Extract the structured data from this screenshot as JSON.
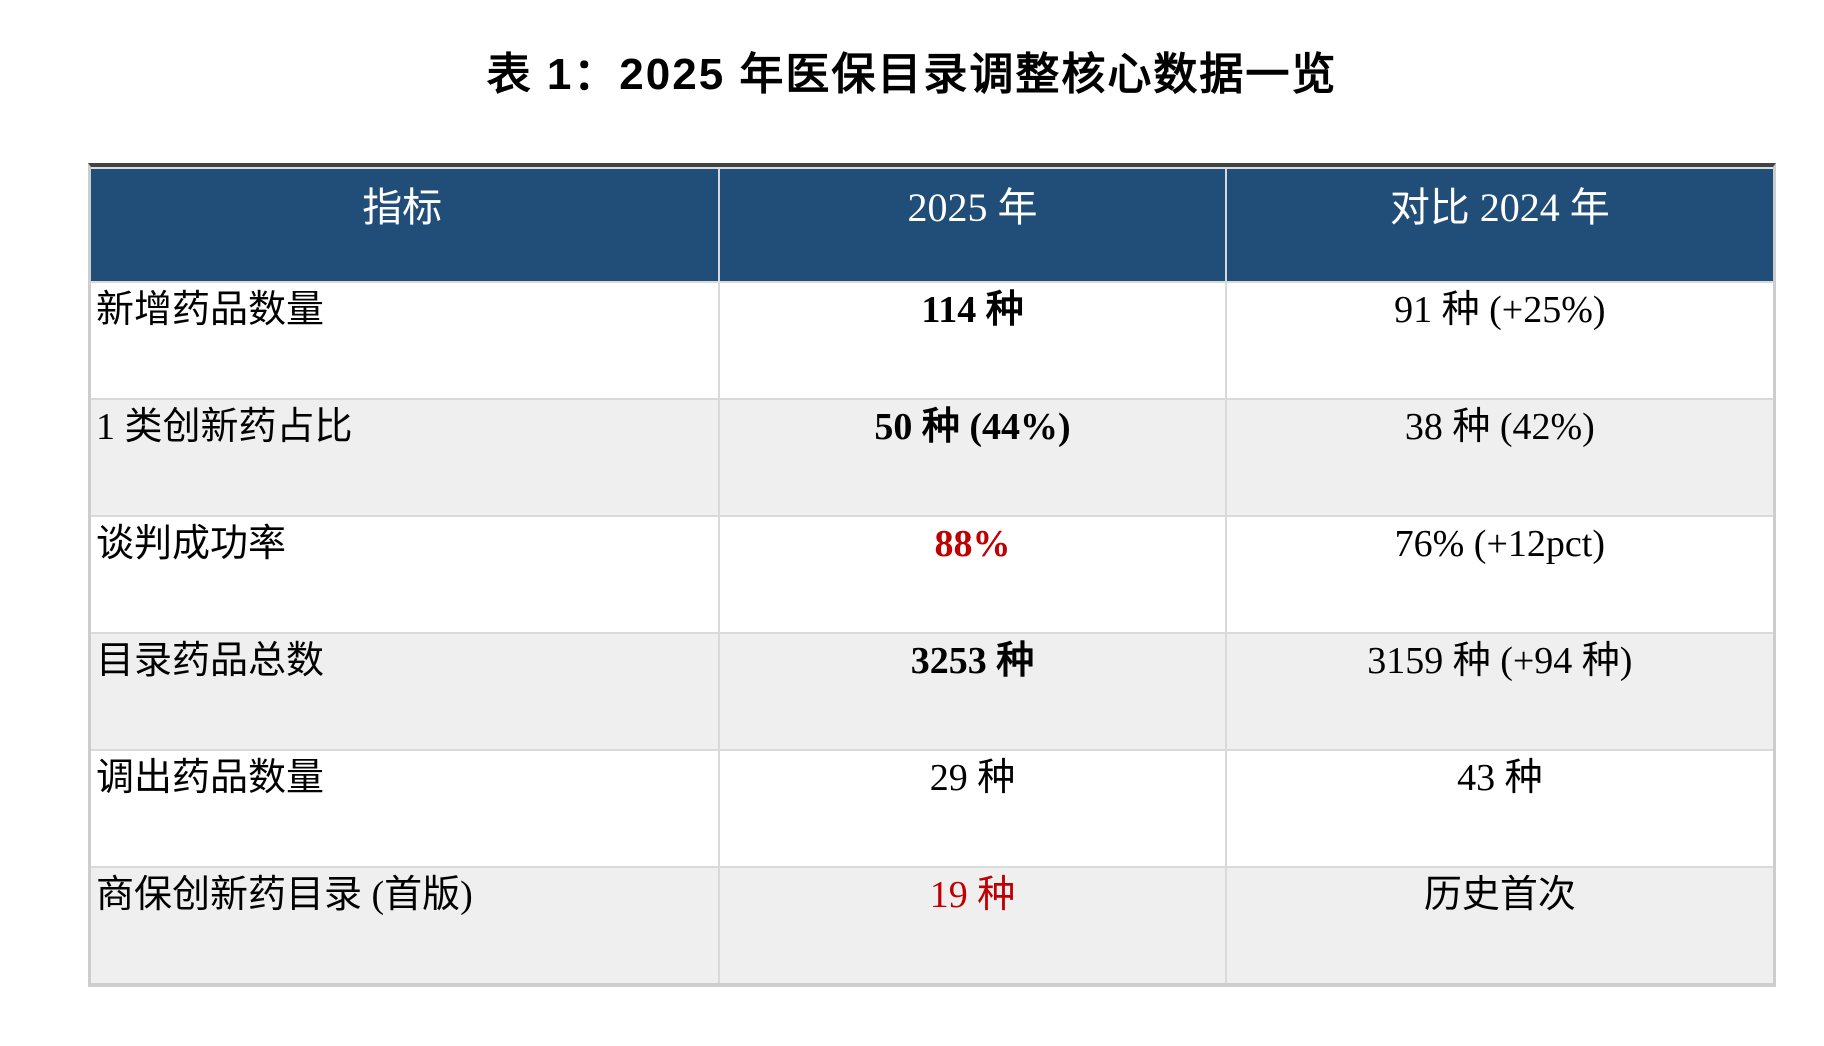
{
  "title": "表 1：2025 年医保目录调整核心数据一览",
  "colors": {
    "header_bg": "#214E79",
    "header_text": "#FFFFFF",
    "accent_red": "#C00000",
    "row_alt_bg": "#EFEFEF",
    "grid_line": "#D9D9D9",
    "top_border": "#424242"
  },
  "table": {
    "columns": [
      "指标",
      "2025 年",
      "对比 2024 年"
    ],
    "rows": [
      {
        "indicator": "新增药品数量",
        "y2025": "114 种",
        "vs2024": "91 种 (+25%)"
      },
      {
        "indicator": "1 类创新药占比",
        "y2025": "50 种 (44%)",
        "vs2024": "38 种 (42%)"
      },
      {
        "indicator": "谈判成功率",
        "y2025": "88%",
        "vs2024": "76% (+12pct)"
      },
      {
        "indicator": "目录药品总数",
        "y2025": "3253 种",
        "vs2024": "3159 种 (+94 种)"
      },
      {
        "indicator": "调出药品数量",
        "y2025": "29 种",
        "vs2024": "43 种"
      },
      {
        "indicator": "商保创新药目录 (首版)",
        "y2025": "19 种",
        "vs2024": "历史首次"
      }
    ]
  }
}
